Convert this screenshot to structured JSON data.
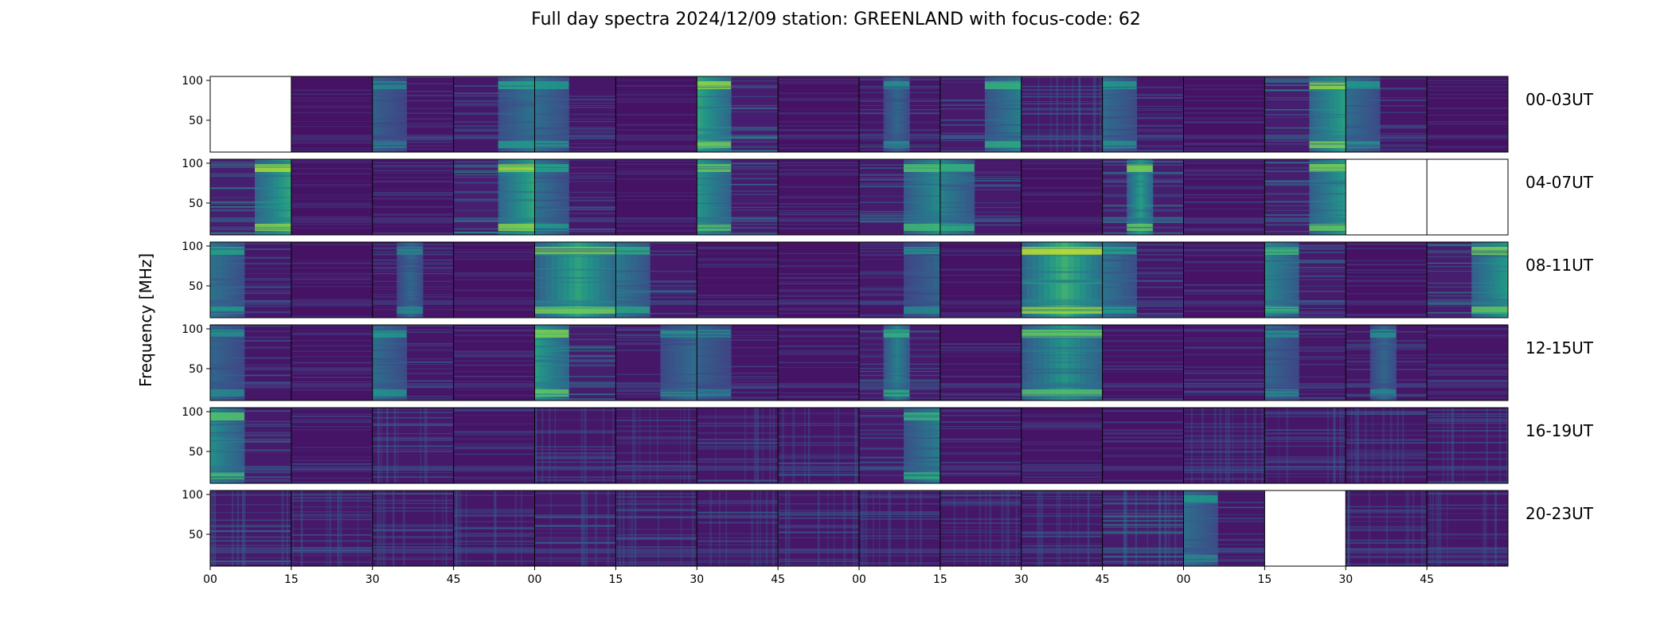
{
  "title": "Full day spectra 2024/12/09 station: GREENLAND with focus-code: 62",
  "chart_data": {
    "type": "heatmap",
    "title": "Full day spectra 2024/12/09 station: GREENLAND with focus-code: 62",
    "ylabel": "Frequency [MHz]",
    "xlabel": "",
    "colormap": "viridis",
    "ylim": [
      10,
      105
    ],
    "y_ticks": [
      "50",
      "100"
    ],
    "x_ticks": [
      "00",
      "15",
      "30",
      "45",
      "00",
      "15",
      "30",
      "45",
      "00",
      "15",
      "30",
      "45",
      "00",
      "15",
      "30",
      "45"
    ],
    "panels_per_row": 16,
    "panel_minutes": 15,
    "rows": [
      {
        "label": "00-03UT",
        "panels": [
          {
            "missing": true
          },
          {
            "intensity": 0.15,
            "pattern": "flat"
          },
          {
            "intensity": 0.35,
            "pattern": "left"
          },
          {
            "intensity": 0.5,
            "pattern": "right"
          },
          {
            "intensity": 0.45,
            "pattern": "left"
          },
          {
            "intensity": 0.15,
            "pattern": "flat"
          },
          {
            "intensity": 0.85,
            "pattern": "left"
          },
          {
            "intensity": 0.2,
            "pattern": "flat"
          },
          {
            "intensity": 0.4,
            "pattern": "mid"
          },
          {
            "intensity": 0.6,
            "pattern": "right"
          },
          {
            "intensity": 0.55,
            "pattern": "flat"
          },
          {
            "intensity": 0.45,
            "pattern": "left"
          },
          {
            "intensity": 0.2,
            "pattern": "flat"
          },
          {
            "intensity": 0.85,
            "pattern": "right"
          },
          {
            "intensity": 0.45,
            "pattern": "left"
          },
          {
            "intensity": 0.15,
            "pattern": "flat"
          }
        ]
      },
      {
        "label": "04-07UT",
        "panels": [
          {
            "intensity": 0.9,
            "pattern": "right"
          },
          {
            "intensity": 0.15,
            "pattern": "flat"
          },
          {
            "intensity": 0.3,
            "pattern": "flat"
          },
          {
            "intensity": 0.9,
            "pattern": "right"
          },
          {
            "intensity": 0.5,
            "pattern": "left"
          },
          {
            "intensity": 0.15,
            "pattern": "flat"
          },
          {
            "intensity": 0.75,
            "pattern": "left"
          },
          {
            "intensity": 0.25,
            "pattern": "flat"
          },
          {
            "intensity": 0.7,
            "pattern": "right"
          },
          {
            "intensity": 0.6,
            "pattern": "left"
          },
          {
            "intensity": 0.15,
            "pattern": "flat"
          },
          {
            "intensity": 0.8,
            "pattern": "mid"
          },
          {
            "intensity": 0.3,
            "pattern": "flat"
          },
          {
            "intensity": 0.8,
            "pattern": "right"
          },
          {
            "missing": true
          },
          {
            "missing": true
          }
        ]
      },
      {
        "label": "08-11UT",
        "panels": [
          {
            "intensity": 0.5,
            "pattern": "left"
          },
          {
            "intensity": 0.15,
            "pattern": "flat"
          },
          {
            "intensity": 0.4,
            "pattern": "mid"
          },
          {
            "intensity": 0.15,
            "pattern": "flat"
          },
          {
            "intensity": 0.85,
            "pattern": "full"
          },
          {
            "intensity": 0.55,
            "pattern": "left"
          },
          {
            "intensity": 0.25,
            "pattern": "flat"
          },
          {
            "intensity": 0.25,
            "pattern": "flat"
          },
          {
            "intensity": 0.4,
            "pattern": "right"
          },
          {
            "intensity": 0.15,
            "pattern": "flat"
          },
          {
            "intensity": 0.95,
            "pattern": "full"
          },
          {
            "intensity": 0.5,
            "pattern": "left"
          },
          {
            "intensity": 0.25,
            "pattern": "flat"
          },
          {
            "intensity": 0.65,
            "pattern": "left"
          },
          {
            "intensity": 0.2,
            "pattern": "flat"
          },
          {
            "intensity": 0.8,
            "pattern": "right"
          }
        ]
      },
      {
        "label": "12-15UT",
        "panels": [
          {
            "intensity": 0.4,
            "pattern": "left"
          },
          {
            "intensity": 0.25,
            "pattern": "flat"
          },
          {
            "intensity": 0.45,
            "pattern": "left"
          },
          {
            "intensity": 0.3,
            "pattern": "flat"
          },
          {
            "intensity": 0.8,
            "pattern": "left"
          },
          {
            "intensity": 0.45,
            "pattern": "right"
          },
          {
            "intensity": 0.35,
            "pattern": "left"
          },
          {
            "intensity": 0.3,
            "pattern": "flat"
          },
          {
            "intensity": 0.6,
            "pattern": "mid"
          },
          {
            "intensity": 0.3,
            "pattern": "flat"
          },
          {
            "intensity": 0.75,
            "pattern": "full"
          },
          {
            "intensity": 0.3,
            "pattern": "flat"
          },
          {
            "intensity": 0.35,
            "pattern": "flat"
          },
          {
            "intensity": 0.4,
            "pattern": "left"
          },
          {
            "intensity": 0.4,
            "pattern": "mid"
          },
          {
            "intensity": 0.35,
            "pattern": "flat"
          }
        ]
      },
      {
        "label": "16-19UT",
        "panels": [
          {
            "intensity": 0.7,
            "pattern": "left"
          },
          {
            "intensity": 0.3,
            "pattern": "flat"
          },
          {
            "intensity": 0.55,
            "pattern": "flat"
          },
          {
            "intensity": 0.35,
            "pattern": "flat"
          },
          {
            "intensity": 0.4,
            "pattern": "flat"
          },
          {
            "intensity": 0.4,
            "pattern": "flat"
          },
          {
            "intensity": 0.45,
            "pattern": "flat"
          },
          {
            "intensity": 0.45,
            "pattern": "flat"
          },
          {
            "intensity": 0.6,
            "pattern": "right"
          },
          {
            "intensity": 0.35,
            "pattern": "flat"
          },
          {
            "intensity": 0.3,
            "pattern": "flat"
          },
          {
            "intensity": 0.3,
            "pattern": "flat"
          },
          {
            "intensity": 0.45,
            "pattern": "flat"
          },
          {
            "intensity": 0.45,
            "pattern": "flat"
          },
          {
            "intensity": 0.4,
            "pattern": "flat"
          },
          {
            "intensity": 0.45,
            "pattern": "flat"
          }
        ]
      },
      {
        "label": "20-23UT",
        "panels": [
          {
            "intensity": 0.55,
            "pattern": "flat"
          },
          {
            "intensity": 0.5,
            "pattern": "flat"
          },
          {
            "intensity": 0.45,
            "pattern": "flat"
          },
          {
            "intensity": 0.45,
            "pattern": "flat"
          },
          {
            "intensity": 0.5,
            "pattern": "flat"
          },
          {
            "intensity": 0.5,
            "pattern": "flat"
          },
          {
            "intensity": 0.45,
            "pattern": "flat"
          },
          {
            "intensity": 0.45,
            "pattern": "flat"
          },
          {
            "intensity": 0.45,
            "pattern": "flat"
          },
          {
            "intensity": 0.45,
            "pattern": "flat"
          },
          {
            "intensity": 0.5,
            "pattern": "flat"
          },
          {
            "intensity": 0.75,
            "pattern": "flat"
          },
          {
            "intensity": 0.45,
            "pattern": "left"
          },
          {
            "missing": true
          },
          {
            "intensity": 0.45,
            "pattern": "flat"
          },
          {
            "intensity": 0.45,
            "pattern": "flat"
          }
        ]
      }
    ]
  }
}
